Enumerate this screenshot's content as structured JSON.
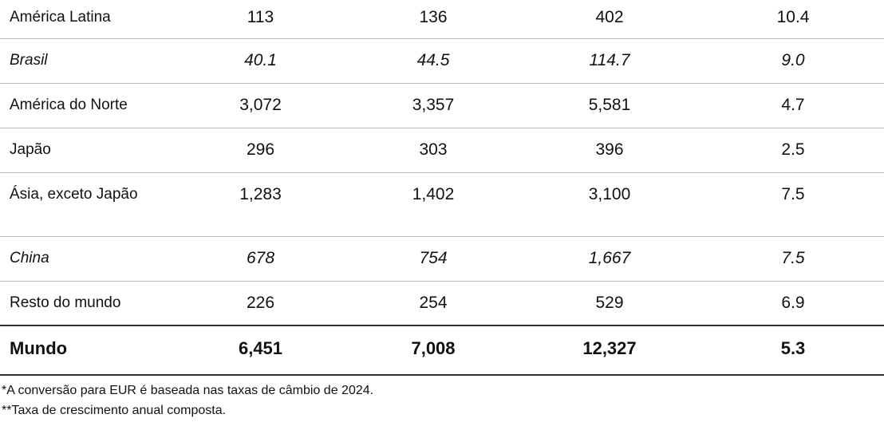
{
  "table": {
    "rows": [
      [
        "América Latina",
        "113",
        "136",
        "402",
        "10.4"
      ],
      [
        "Brasil",
        "40.1",
        "44.5",
        "114.7",
        "9.0"
      ],
      [
        "América do Norte",
        "3,072",
        "3,357",
        "5,581",
        "4.7"
      ],
      [
        "Japão",
        "296",
        "303",
        "396",
        "2.5"
      ],
      [
        "Ásia, exceto Japão",
        "1,283",
        "1,402",
        "3,100",
        "7.5"
      ],
      [
        "China",
        "678",
        "754",
        "1,667",
        "7.5"
      ],
      [
        "Resto do mundo",
        "226",
        "254",
        "529",
        "6.9"
      ],
      [
        "Mundo",
        "6,451",
        "7,008",
        "12,327",
        "5.3"
      ]
    ]
  },
  "footnotes": [
    "*A conversão para EUR é baseada nas taxas de câmbio de 2024.",
    "**Taxa de crescimento anual composta."
  ]
}
